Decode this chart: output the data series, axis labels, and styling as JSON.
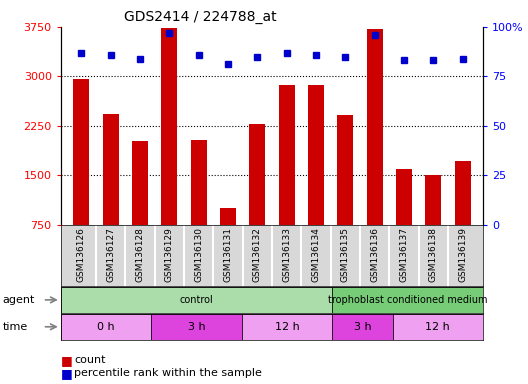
{
  "title": "GDS2414 / 224788_at",
  "samples": [
    "GSM136126",
    "GSM136127",
    "GSM136128",
    "GSM136129",
    "GSM136130",
    "GSM136131",
    "GSM136132",
    "GSM136133",
    "GSM136134",
    "GSM136135",
    "GSM136136",
    "GSM136137",
    "GSM136138",
    "GSM136139"
  ],
  "counts": [
    2960,
    2430,
    2020,
    3740,
    2030,
    1000,
    2280,
    2870,
    2870,
    2420,
    3720,
    1590,
    1500,
    1720
  ],
  "percentile": [
    87,
    86,
    84,
    97,
    86,
    81,
    85,
    87,
    86,
    85,
    96,
    83,
    83,
    84
  ],
  "bar_color": "#cc0000",
  "dot_color": "#0000cc",
  "ylim_left": [
    750,
    3750
  ],
  "ylim_right": [
    0,
    100
  ],
  "yticks_left": [
    750,
    1500,
    2250,
    3000,
    3750
  ],
  "yticks_right": [
    0,
    25,
    50,
    75,
    100
  ],
  "agent_patches": [
    {
      "label": "control",
      "start": 0,
      "end": 9,
      "color": "#aaddaa"
    },
    {
      "label": "trophoblast conditioned medium",
      "start": 9,
      "end": 14,
      "color": "#77cc77"
    }
  ],
  "time_patches": [
    {
      "label": "0 h",
      "start": 0,
      "end": 3,
      "color": "#f0a0f0"
    },
    {
      "label": "3 h",
      "start": 3,
      "end": 6,
      "color": "#dd44dd"
    },
    {
      "label": "12 h",
      "start": 6,
      "end": 9,
      "color": "#f0a0f0"
    },
    {
      "label": "3 h",
      "start": 9,
      "end": 11,
      "color": "#dd44dd"
    },
    {
      "label": "12 h",
      "start": 11,
      "end": 14,
      "color": "#f0a0f0"
    }
  ],
  "tick_box_color": "#d8d8d8",
  "background_color": "#ffffff"
}
